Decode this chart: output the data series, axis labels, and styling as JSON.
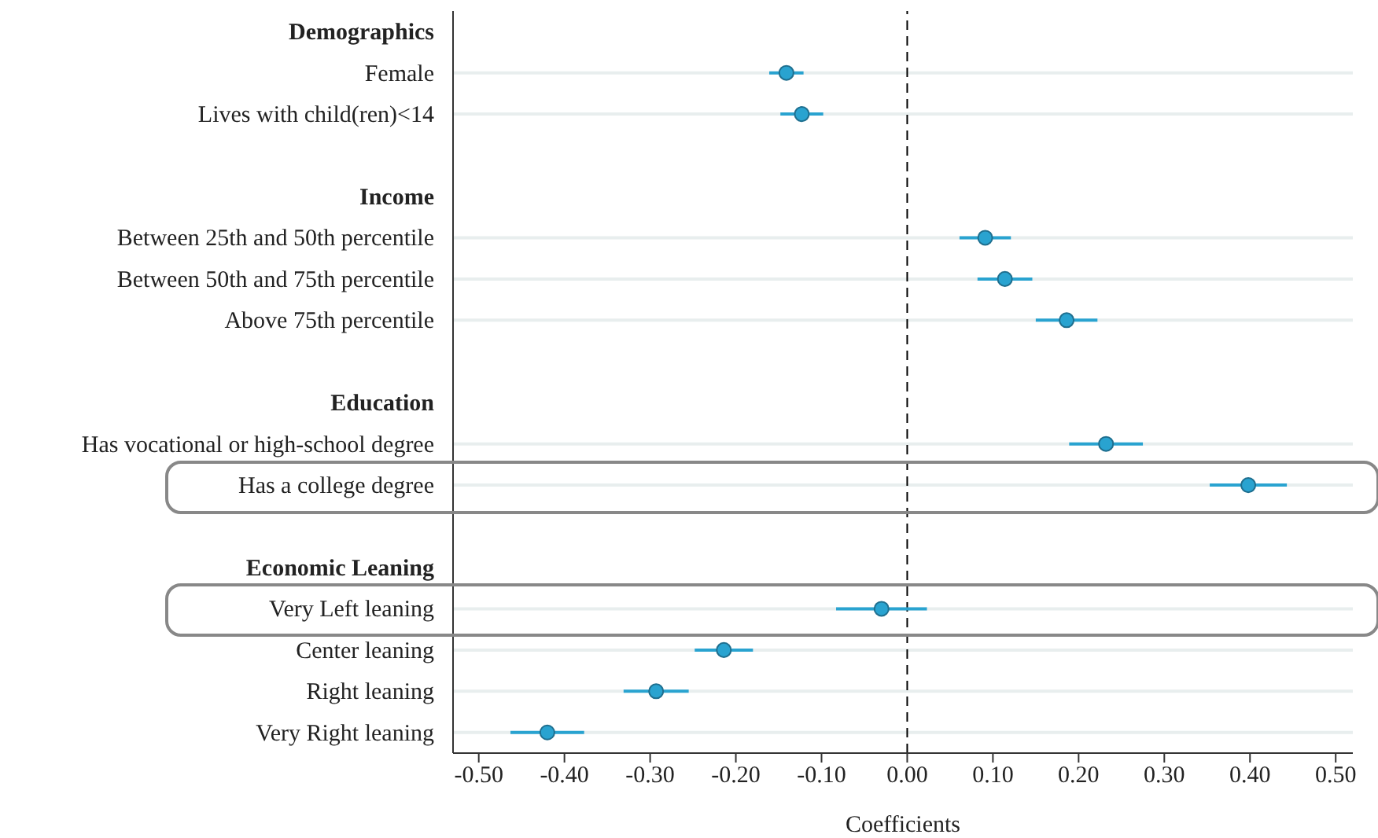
{
  "chart_data": {
    "type": "scatter",
    "orientation": "horizontal",
    "xlabel": "Coefficients",
    "categories": [
      "Demographics",
      "Female",
      "Lives with child(ren)<14",
      null,
      "Income",
      "Between 25th and 50th percentile",
      "Between 50th and 75th percentile",
      "Above 75th percentile",
      null,
      "Education",
      "Has vocational or high-school degree",
      "Has a college degree",
      null,
      "Economic Leaning",
      "Very Left leaning",
      "Center leaning",
      "Right leaning",
      "Very Right leaning"
    ],
    "series": [
      {
        "color": "#29a3d0",
        "values": [
          null,
          -0.141,
          -0.123,
          null,
          null,
          0.091,
          0.114,
          0.186,
          null,
          null,
          0.232,
          0.398,
          null,
          null,
          -0.03,
          -0.214,
          -0.293,
          -0.42
        ],
        "errors": [
          null,
          0.02,
          0.025,
          null,
          null,
          0.03,
          0.032,
          0.036,
          null,
          null,
          0.043,
          0.045,
          null,
          null,
          0.053,
          0.034,
          0.038,
          0.043
        ]
      }
    ],
    "xlim": [
      -0.53,
      0.52
    ],
    "xticks": [
      {
        "value": -0.5,
        "label": "-0.50"
      },
      {
        "value": -0.4,
        "label": "-0.40"
      },
      {
        "value": -0.3,
        "label": "-0.30"
      },
      {
        "value": -0.2,
        "label": "-0.20"
      },
      {
        "value": -0.1,
        "label": "-0.10"
      },
      {
        "value": 0,
        "label": "0.00"
      },
      {
        "value": 0.1,
        "label": "0.10"
      },
      {
        "value": 0.2,
        "label": "0.20"
      },
      {
        "value": 0.3,
        "label": "0.30"
      },
      {
        "value": 0.4,
        "label": "0.40"
      },
      {
        "value": 0.5,
        "label": "0.50"
      }
    ],
    "ref_lines": [
      {
        "axis": "x",
        "value": 0,
        "line_style": "dashed",
        "color": "#000000"
      }
    ],
    "grid": "y",
    "marker": "circle"
  }
}
